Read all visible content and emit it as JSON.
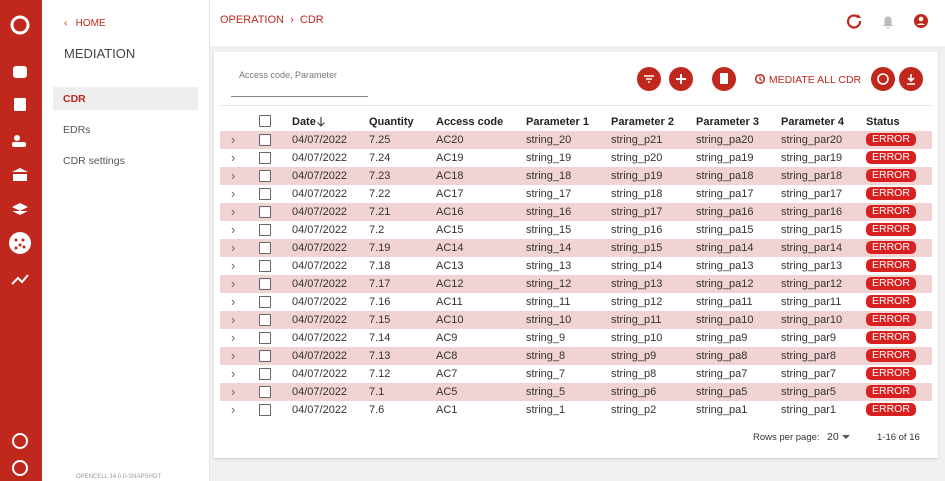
{
  "header": {
    "breadcrumb": [
      "OPERATION",
      "CDR"
    ]
  },
  "nav": {
    "back": "HOME",
    "title": "MEDIATION",
    "items": [
      "CDR",
      "EDRs",
      "CDR settings"
    ],
    "version": "OPENCELL 14.0.0-SNAPSHOT"
  },
  "toolbar": {
    "search_placeholder": "Access code, Parameter",
    "mediate_all": "MEDIATE ALL CDR"
  },
  "table": {
    "columns": [
      "Date",
      "Quantity",
      "Access code",
      "Parameter 1",
      "Parameter 2",
      "Parameter 3",
      "Parameter 4",
      "Status"
    ],
    "rows": [
      [
        "04/07/2022",
        "7.25",
        "AC20",
        "string_20",
        "string_p21",
        "string_pa20",
        "string_par20",
        "ERROR"
      ],
      [
        "04/07/2022",
        "7.24",
        "AC19",
        "string_19",
        "string_p20",
        "string_pa19",
        "string_par19",
        "ERROR"
      ],
      [
        "04/07/2022",
        "7.23",
        "AC18",
        "string_18",
        "string_p19",
        "string_pa18",
        "string_par18",
        "ERROR"
      ],
      [
        "04/07/2022",
        "7.22",
        "AC17",
        "string_17",
        "string_p18",
        "string_pa17",
        "string_par17",
        "ERROR"
      ],
      [
        "04/07/2022",
        "7.21",
        "AC16",
        "string_16",
        "string_p17",
        "string_pa16",
        "string_par16",
        "ERROR"
      ],
      [
        "04/07/2022",
        "7.2",
        "AC15",
        "string_15",
        "string_p16",
        "string_pa15",
        "string_par15",
        "ERROR"
      ],
      [
        "04/07/2022",
        "7.19",
        "AC14",
        "string_14",
        "string_p15",
        "string_pa14",
        "string_par14",
        "ERROR"
      ],
      [
        "04/07/2022",
        "7.18",
        "AC13",
        "string_13",
        "string_p14",
        "string_pa13",
        "string_par13",
        "ERROR"
      ],
      [
        "04/07/2022",
        "7.17",
        "AC12",
        "string_12",
        "string_p13",
        "string_pa12",
        "string_par12",
        "ERROR"
      ],
      [
        "04/07/2022",
        "7.16",
        "AC11",
        "string_11",
        "string_p12",
        "string_pa11",
        "string_par11",
        "ERROR"
      ],
      [
        "04/07/2022",
        "7.15",
        "AC10",
        "string_10",
        "string_p11",
        "string_pa10",
        "string_par10",
        "ERROR"
      ],
      [
        "04/07/2022",
        "7.14",
        "AC9",
        "string_9",
        "string_p10",
        "string_pa9",
        "string_par9",
        "ERROR"
      ],
      [
        "04/07/2022",
        "7.13",
        "AC8",
        "string_8",
        "string_p9",
        "string_pa8",
        "string_par8",
        "ERROR"
      ],
      [
        "04/07/2022",
        "7.12",
        "AC7",
        "string_7",
        "string_p8",
        "string_pa7",
        "string_par7",
        "ERROR"
      ],
      [
        "04/07/2022",
        "7.1",
        "AC5",
        "string_5",
        "string_p6",
        "string_pa5",
        "string_par5",
        "ERROR"
      ],
      [
        "04/07/2022",
        "7.6",
        "AC1",
        "string_1",
        "string_p2",
        "string_pa1",
        "string_par1",
        "ERROR"
      ]
    ]
  },
  "pagination": {
    "rows_per_page_label": "Rows per page:",
    "rows_per_page": 20,
    "range": "1-16 of 16"
  }
}
